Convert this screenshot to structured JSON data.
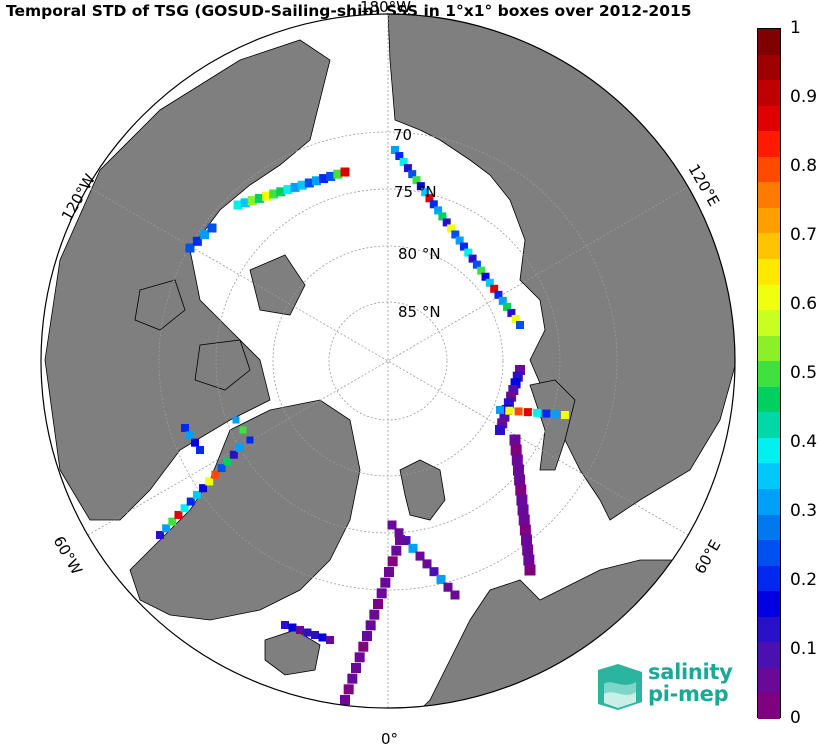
{
  "title": "Temporal STD of TSG (GOSUD-Sailing-ship) SSS in 1°x1° boxes over 2012-2015",
  "map": {
    "projection": "north-polar stereographic",
    "latitude_labels": [
      "70",
      "75 °N",
      "80 °N",
      "85 °N"
    ],
    "longitude_labels": [
      "180°W",
      "120°W",
      "120°E",
      "60°W",
      "60°E",
      "0°"
    ],
    "colors": {
      "land": "#7f7f7f",
      "ocean": "#ffffff",
      "graticule": "#9a9a9a"
    }
  },
  "colorbar": {
    "ticks": [
      "1",
      "0.9",
      "0.8",
      "0.7",
      "0.6",
      "0.5",
      "0.4",
      "0.3",
      "0.2",
      "0.1",
      "0"
    ],
    "range": [
      0,
      1
    ],
    "colors": [
      "#800000",
      "#9e0000",
      "#bf0000",
      "#e00000",
      "#ff1a00",
      "#ff4a00",
      "#ff7a00",
      "#ff9f00",
      "#ffc400",
      "#ffe800",
      "#f0ff10",
      "#c8ff20",
      "#8cf028",
      "#40e040",
      "#00d060",
      "#00d8a8",
      "#00f0f0",
      "#00c8f8",
      "#00a0f8",
      "#0078f0",
      "#0050f0",
      "#0028f0",
      "#0000e0",
      "#2a10c8",
      "#4a10b0",
      "#6a0898",
      "#800080"
    ]
  },
  "logo": {
    "line1": "salinity",
    "line2": "pi-mep"
  }
}
